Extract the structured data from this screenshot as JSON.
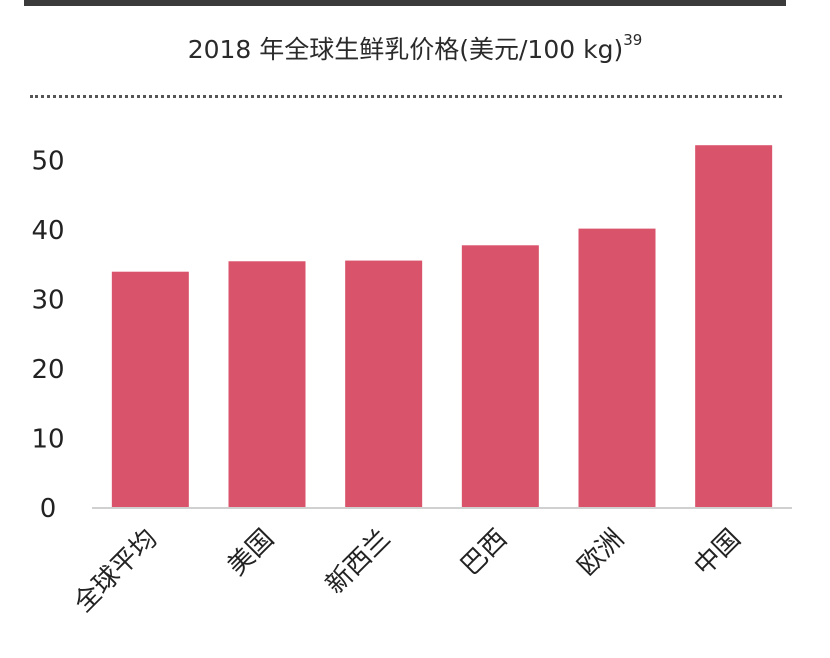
{
  "header": {
    "title": "2018 年全球生鲜乳价格(美元/100 kg)",
    "footnote": "39"
  },
  "chart_data": {
    "type": "bar",
    "title": "2018 年全球生鲜乳价格(美元/100 kg)",
    "xlabel": "",
    "ylabel": "",
    "categories": [
      "全球平均",
      "美国",
      "新西兰",
      "巴西",
      "欧洲",
      "中国"
    ],
    "values": [
      34,
      35.5,
      35.6,
      37.8,
      40.2,
      52.2
    ],
    "yticks": [
      0,
      10,
      20,
      30,
      40,
      50
    ],
    "ylim": [
      0,
      53
    ],
    "bar_color": "#d9536b",
    "grid": false,
    "legend": "none"
  }
}
